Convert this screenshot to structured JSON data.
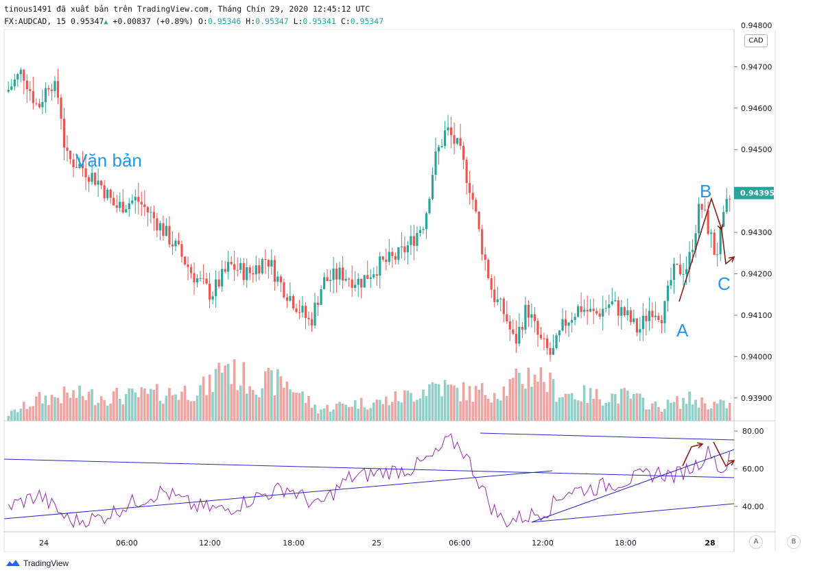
{
  "header": {
    "line1": "tinous1491 đã xuất bản trên TradingView.com, Tháng Chín 29, 2020 12:45:12 UTC",
    "symbol": "FX:AUDCAD, 15",
    "last": "0.95347",
    "change": "+0.00837 (+0.89%)",
    "open_label": "O:",
    "open": "0.95346",
    "high_label": "H:",
    "high": "0.95347",
    "low_label": "L:",
    "low": "0.95341",
    "close_label": "C:",
    "close": "0.95347"
  },
  "currency_badge": "CAD",
  "brand": "TradingView",
  "scale_buttons": [
    "A",
    "B"
  ],
  "colors": {
    "up": "#26a69a",
    "down": "#ef5350",
    "up_vol": "#8fcfc7",
    "down_vol": "#f0a4a2",
    "rsi": "#9c27b0",
    "trend": "#2424c8",
    "annot": "#8b1a1a",
    "label": "#2196f3"
  },
  "chart_data": {
    "type": "candlestick",
    "symbol": "FX:AUDCAD",
    "interval": "15",
    "price_axis": {
      "ylim": [
        0.93845,
        0.9479
      ],
      "ticks": [
        "0.94700",
        "0.94600",
        "0.94500",
        "0.94300",
        "0.94200",
        "0.94100",
        "0.94000",
        "0.93900"
      ],
      "top_partial": "0.94800"
    },
    "current_price_label": "0.94395",
    "time_axis": {
      "labels": [
        "24",
        "06:00",
        "12:00",
        "18:00",
        "25",
        "06:00",
        "12:00",
        "18:00",
        "28"
      ],
      "bold": [
        "28"
      ]
    },
    "price_keypoints": [
      [
        0,
        0.9464
      ],
      [
        5,
        0.9469
      ],
      [
        10,
        0.946
      ],
      [
        14,
        0.9467
      ],
      [
        17,
        0.9462
      ],
      [
        19,
        0.9448
      ],
      [
        24,
        0.9446
      ],
      [
        30,
        0.9442
      ],
      [
        35,
        0.9436
      ],
      [
        42,
        0.9438
      ],
      [
        48,
        0.9433
      ],
      [
        55,
        0.9426
      ],
      [
        60,
        0.942
      ],
      [
        66,
        0.9415
      ],
      [
        72,
        0.9422
      ],
      [
        78,
        0.942
      ],
      [
        84,
        0.9424
      ],
      [
        88,
        0.9418
      ],
      [
        93,
        0.9413
      ],
      [
        98,
        0.9408
      ],
      [
        102,
        0.9418
      ],
      [
        108,
        0.942
      ],
      [
        114,
        0.9418
      ],
      [
        120,
        0.9422
      ],
      [
        126,
        0.9424
      ],
      [
        130,
        0.9427
      ],
      [
        135,
        0.9433
      ],
      [
        138,
        0.9447
      ],
      [
        142,
        0.9455
      ],
      [
        146,
        0.945
      ],
      [
        150,
        0.944
      ],
      [
        153,
        0.9428
      ],
      [
        157,
        0.9415
      ],
      [
        161,
        0.941
      ],
      [
        164,
        0.9403
      ],
      [
        168,
        0.9412
      ],
      [
        172,
        0.9404
      ],
      [
        176,
        0.94
      ],
      [
        180,
        0.9408
      ],
      [
        185,
        0.9412
      ],
      [
        190,
        0.941
      ],
      [
        195,
        0.9413
      ],
      [
        200,
        0.941
      ],
      [
        204,
        0.9406
      ],
      [
        208,
        0.9412
      ],
      [
        212,
        0.941
      ],
      [
        215,
        0.942
      ],
      [
        220,
        0.9422
      ],
      [
        224,
        0.9437
      ],
      [
        227,
        0.943
      ],
      [
        229,
        0.9424
      ],
      [
        233,
        0.9438
      ]
    ],
    "candle_count": 234,
    "volume_keypoints": [
      [
        0,
        10
      ],
      [
        10,
        35
      ],
      [
        20,
        42
      ],
      [
        30,
        40
      ],
      [
        40,
        40
      ],
      [
        55,
        46
      ],
      [
        65,
        55
      ],
      [
        70,
        98
      ],
      [
        73,
        75
      ],
      [
        80,
        62
      ],
      [
        90,
        62
      ],
      [
        100,
        18
      ],
      [
        110,
        28
      ],
      [
        120,
        30
      ],
      [
        130,
        42
      ],
      [
        138,
        60
      ],
      [
        143,
        50
      ],
      [
        150,
        45
      ],
      [
        160,
        50
      ],
      [
        170,
        80
      ],
      [
        178,
        45
      ],
      [
        190,
        40
      ],
      [
        200,
        40
      ],
      [
        210,
        22
      ],
      [
        220,
        35
      ],
      [
        226,
        28
      ],
      [
        233,
        25
      ]
    ],
    "rsi": {
      "ylim": [
        28,
        84
      ],
      "ticks": [
        "80.00",
        "60.00",
        "40.00"
      ],
      "keypoints": [
        [
          0,
          40
        ],
        [
          10,
          46
        ],
        [
          20,
          32
        ],
        [
          30,
          34
        ],
        [
          40,
          42
        ],
        [
          50,
          48
        ],
        [
          60,
          40
        ],
        [
          70,
          38
        ],
        [
          80,
          45
        ],
        [
          90,
          50
        ],
        [
          100,
          40
        ],
        [
          110,
          55
        ],
        [
          120,
          58
        ],
        [
          130,
          60
        ],
        [
          138,
          67
        ],
        [
          142,
          75
        ],
        [
          146,
          72
        ],
        [
          150,
          60
        ],
        [
          156,
          40
        ],
        [
          160,
          32
        ],
        [
          168,
          35
        ],
        [
          174,
          38
        ],
        [
          180,
          48
        ],
        [
          190,
          50
        ],
        [
          200,
          54
        ],
        [
          210,
          58
        ],
        [
          215,
          56
        ],
        [
          222,
          62
        ],
        [
          227,
          70
        ],
        [
          230,
          58
        ],
        [
          233,
          65
        ]
      ]
    },
    "annotations": {
      "text": "Văn bản",
      "wave_labels": [
        "A",
        "B",
        "C"
      ]
    }
  }
}
